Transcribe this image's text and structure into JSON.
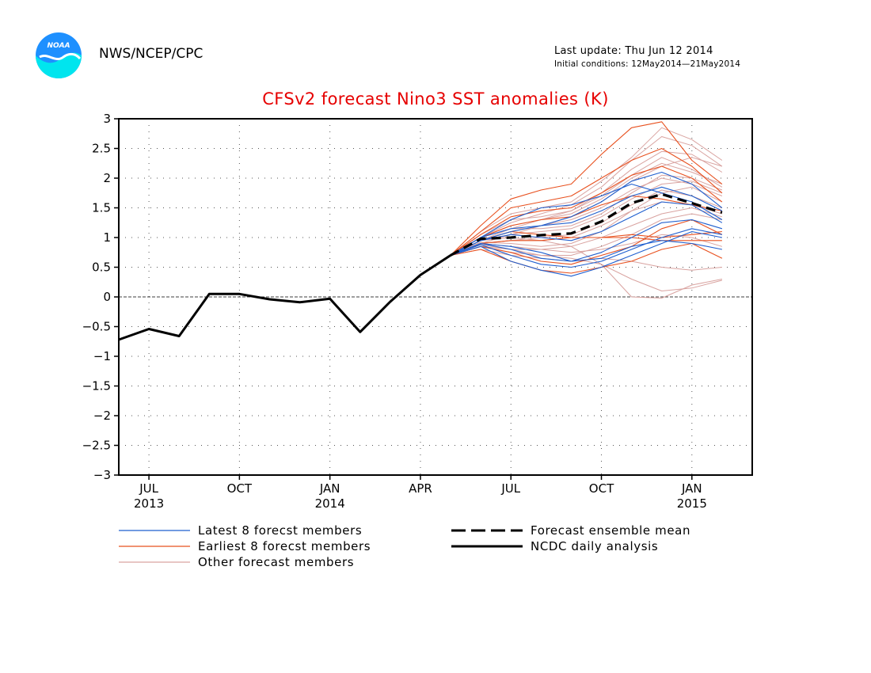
{
  "header": {
    "org": "NWS/NCEP/CPC",
    "last_update": "Last update: Thu Jun 12 2014",
    "initial_conditions": "Initial conditions: 12May2014—21May2014",
    "logo_text": "NOAA"
  },
  "colors": {
    "title": "#e60000",
    "latest": "#1f5fcf",
    "earliest": "#e8501e",
    "other": "#d9a3a0",
    "mean": "#000000",
    "analysis": "#000000"
  },
  "chart_data": {
    "type": "line",
    "title": "CFSv2 forecast Nino3 SST anomalies (K)",
    "ylim": [
      -3,
      3
    ],
    "xlim": [
      "2013-06",
      "2015-03"
    ],
    "yticks": [
      -3,
      -2.5,
      -2,
      -1.5,
      -1,
      -0.5,
      0,
      0.5,
      1,
      1.5,
      2,
      2.5,
      3
    ],
    "ytick_labels": [
      "−3",
      "−2.5",
      "−2",
      "−1.5",
      "−1",
      "−0.5",
      "0",
      "0.5",
      "1",
      "1.5",
      "2",
      "2.5",
      "3"
    ],
    "xticks": [
      {
        "date": "2013-07",
        "label": "JUL",
        "year": "2013"
      },
      {
        "date": "2013-10",
        "label": "OCT",
        "year": ""
      },
      {
        "date": "2014-01",
        "label": "JAN",
        "year": "2014"
      },
      {
        "date": "2014-04",
        "label": "APR",
        "year": ""
      },
      {
        "date": "2014-07",
        "label": "JUL",
        "year": ""
      },
      {
        "date": "2014-10",
        "label": "OCT",
        "year": ""
      },
      {
        "date": "2015-01",
        "label": "JAN",
        "year": "2015"
      }
    ],
    "grid": true,
    "legend_position": "bottom",
    "legend": [
      {
        "key": "latest",
        "label": "Latest 8 forecst members",
        "style": "thin"
      },
      {
        "key": "earliest",
        "label": "Earliest 8 forecst members",
        "style": "thin"
      },
      {
        "key": "other",
        "label": "Other forecast members",
        "style": "thin"
      },
      {
        "key": "mean",
        "label": "Forecast ensemble mean",
        "style": "dashed"
      },
      {
        "key": "analysis",
        "label": "NCDC daily analysis",
        "style": "thick"
      }
    ],
    "forecast_x": [
      "2014-05",
      "2014-06",
      "2014-07",
      "2014-08",
      "2014-09",
      "2014-10",
      "2014-11",
      "2014-12",
      "2015-01",
      "2015-02"
    ],
    "series": [
      {
        "name": "NCDC daily analysis",
        "group": "analysis",
        "x": [
          "2013-06",
          "2013-07",
          "2013-08",
          "2013-09",
          "2013-10",
          "2013-11",
          "2013-12",
          "2014-01",
          "2014-02",
          "2014-03",
          "2014-04",
          "2014-05"
        ],
        "values": [
          -0.72,
          -0.54,
          -0.66,
          0.05,
          0.05,
          -0.04,
          -0.09,
          -0.03,
          -0.59,
          -0.08,
          0.37,
          0.7
        ]
      },
      {
        "name": "Forecast ensemble mean",
        "group": "mean",
        "values": [
          0.7,
          0.98,
          1.0,
          1.04,
          1.07,
          1.27,
          1.58,
          1.73,
          1.58,
          1.42
        ]
      },
      {
        "group": "latest",
        "values": [
          0.7,
          0.95,
          1.1,
          1.2,
          1.35,
          1.6,
          1.95,
          2.1,
          1.9,
          1.5
        ]
      },
      {
        "group": "latest",
        "values": [
          0.7,
          1.0,
          1.3,
          1.5,
          1.55,
          1.7,
          1.9,
          1.75,
          1.6,
          1.3
        ]
      },
      {
        "group": "latest",
        "values": [
          0.7,
          0.9,
          0.85,
          0.75,
          0.6,
          0.65,
          0.85,
          0.95,
          0.9,
          0.8
        ]
      },
      {
        "group": "latest",
        "values": [
          0.7,
          0.85,
          0.6,
          0.45,
          0.35,
          0.5,
          0.7,
          0.9,
          1.1,
          1.0
        ]
      },
      {
        "group": "latest",
        "values": [
          0.7,
          0.95,
          1.05,
          1.0,
          0.95,
          1.1,
          1.35,
          1.6,
          1.55,
          1.25
        ]
      },
      {
        "group": "latest",
        "values": [
          0.7,
          0.9,
          0.8,
          0.65,
          0.6,
          0.75,
          1.0,
          1.25,
          1.3,
          1.15
        ]
      },
      {
        "group": "latest",
        "values": [
          0.7,
          1.0,
          1.15,
          1.2,
          1.25,
          1.45,
          1.7,
          1.85,
          1.7,
          1.45
        ]
      },
      {
        "group": "latest",
        "values": [
          0.7,
          0.88,
          0.7,
          0.55,
          0.5,
          0.6,
          0.8,
          1.0,
          1.15,
          1.05
        ]
      },
      {
        "group": "earliest",
        "values": [
          0.7,
          1.2,
          1.65,
          1.8,
          1.9,
          2.4,
          2.85,
          2.95,
          2.3,
          1.9
        ]
      },
      {
        "group": "earliest",
        "values": [
          0.7,
          1.1,
          1.5,
          1.6,
          1.7,
          2.0,
          2.3,
          2.5,
          2.2,
          1.75
        ]
      },
      {
        "group": "earliest",
        "values": [
          0.7,
          0.8,
          0.6,
          0.45,
          0.4,
          0.5,
          0.6,
          0.8,
          0.9,
          0.65
        ]
      },
      {
        "group": "earliest",
        "values": [
          0.7,
          0.9,
          0.95,
          0.95,
          1.0,
          1.0,
          1.05,
          1.0,
          1.05,
          1.1
        ]
      },
      {
        "group": "earliest",
        "values": [
          0.7,
          1.05,
          1.35,
          1.45,
          1.5,
          1.75,
          2.05,
          2.2,
          2.0,
          1.6
        ]
      },
      {
        "group": "earliest",
        "values": [
          0.7,
          0.85,
          0.75,
          0.6,
          0.55,
          0.7,
          0.85,
          1.15,
          1.3,
          1.05
        ]
      },
      {
        "group": "earliest",
        "values": [
          0.7,
          0.95,
          1.1,
          1.05,
          1.0,
          1.0,
          1.0,
          0.95,
          0.95,
          0.95
        ]
      },
      {
        "group": "earliest",
        "values": [
          0.7,
          1.0,
          1.2,
          1.3,
          1.35,
          1.55,
          1.7,
          1.65,
          1.55,
          1.45
        ]
      },
      {
        "group": "other",
        "values": [
          0.7,
          0.95,
          1.15,
          1.3,
          1.45,
          1.75,
          2.15,
          2.45,
          2.4,
          2.1
        ]
      },
      {
        "group": "other",
        "values": [
          0.7,
          0.9,
          1.05,
          1.2,
          1.35,
          1.6,
          1.95,
          2.2,
          2.35,
          2.2
        ]
      },
      {
        "group": "other",
        "values": [
          0.7,
          1.0,
          1.25,
          1.4,
          1.55,
          1.85,
          2.3,
          2.7,
          2.55,
          2.2
        ]
      },
      {
        "group": "other",
        "values": [
          0.7,
          0.85,
          0.75,
          0.7,
          0.7,
          0.85,
          1.05,
          1.3,
          1.4,
          1.3
        ]
      },
      {
        "group": "other",
        "values": [
          0.7,
          0.92,
          0.9,
          0.85,
          0.9,
          1.1,
          1.45,
          1.75,
          1.85,
          1.6
        ]
      },
      {
        "group": "other",
        "values": [
          0.7,
          0.88,
          0.8,
          0.7,
          0.65,
          0.55,
          0.3,
          0.1,
          0.15,
          0.28
        ]
      },
      {
        "group": "other",
        "values": [
          0.7,
          0.9,
          0.95,
          0.95,
          0.85,
          0.55,
          0.0,
          -0.02,
          0.2,
          0.3
        ]
      },
      {
        "group": "other",
        "values": [
          0.7,
          0.95,
          1.1,
          1.2,
          1.3,
          1.5,
          1.8,
          2.0,
          1.9,
          1.7
        ]
      },
      {
        "group": "other",
        "values": [
          0.7,
          1.05,
          1.3,
          1.35,
          1.45,
          1.7,
          2.05,
          2.35,
          2.15,
          1.85
        ]
      },
      {
        "group": "other",
        "values": [
          0.7,
          0.9,
          0.95,
          1.0,
          1.05,
          1.25,
          1.55,
          1.8,
          1.7,
          1.5
        ]
      },
      {
        "group": "other",
        "values": [
          0.7,
          0.8,
          0.7,
          0.65,
          0.6,
          0.65,
          0.6,
          0.5,
          0.45,
          0.5
        ]
      },
      {
        "group": "other",
        "values": [
          0.7,
          1.0,
          1.15,
          1.15,
          1.2,
          1.4,
          1.75,
          2.05,
          2.0,
          1.8
        ]
      },
      {
        "group": "other",
        "values": [
          0.7,
          0.95,
          1.0,
          0.95,
          1.0,
          1.2,
          1.45,
          1.6,
          1.55,
          1.4
        ]
      },
      {
        "group": "other",
        "values": [
          0.7,
          1.1,
          1.4,
          1.5,
          1.6,
          1.95,
          2.35,
          2.85,
          2.65,
          2.3
        ]
      },
      {
        "group": "other",
        "values": [
          0.7,
          0.85,
          0.8,
          0.8,
          0.85,
          1.0,
          1.2,
          1.4,
          1.5,
          1.35
        ]
      },
      {
        "group": "other",
        "values": [
          0.7,
          0.95,
          1.05,
          1.1,
          1.15,
          1.35,
          1.65,
          1.9,
          1.95,
          1.75
        ]
      },
      {
        "group": "other",
        "values": [
          0.7,
          0.9,
          0.85,
          0.8,
          0.75,
          0.8,
          0.9,
          1.05,
          1.0,
          0.85
        ]
      },
      {
        "group": "other",
        "values": [
          0.7,
          1.0,
          1.2,
          1.3,
          1.4,
          1.65,
          2.0,
          2.25,
          2.1,
          1.9
        ]
      }
    ]
  }
}
